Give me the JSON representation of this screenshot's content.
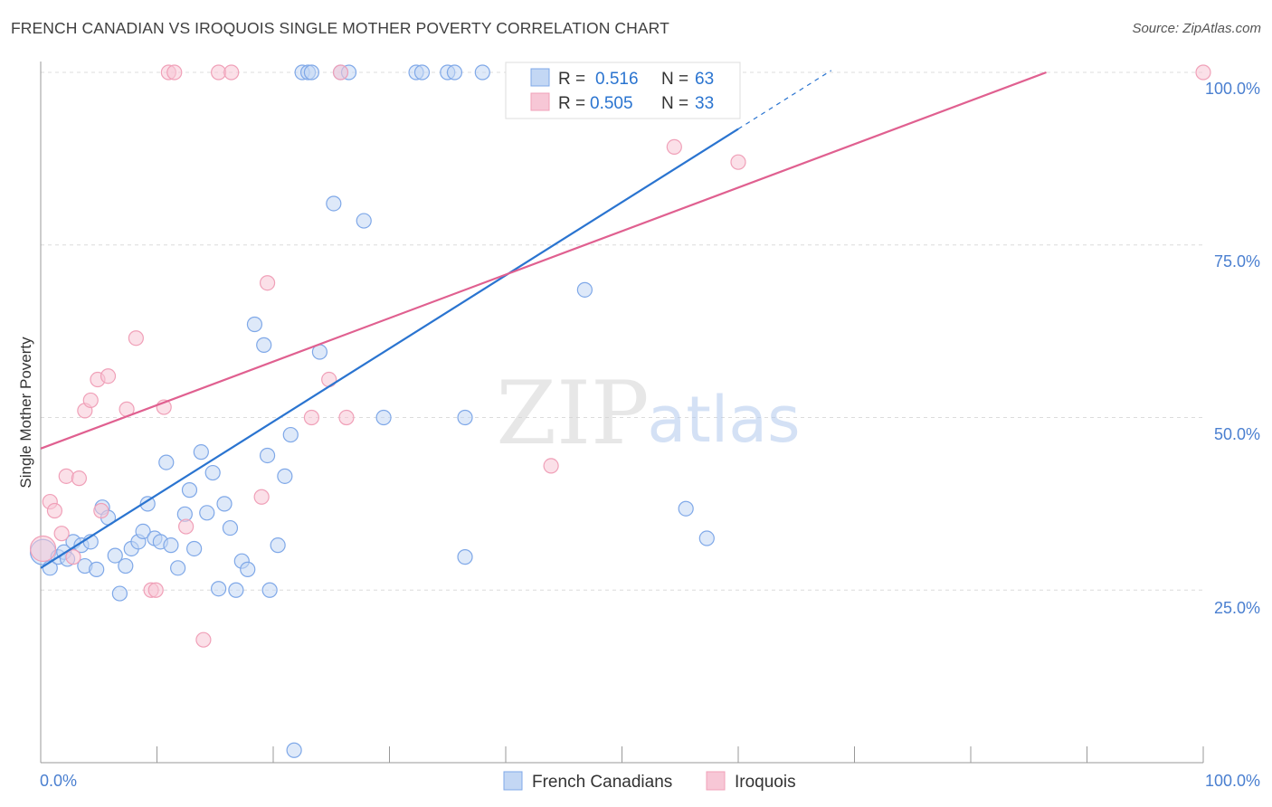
{
  "chart_data": {
    "type": "scatter",
    "title": "FRENCH CANADIAN VS IROQUOIS SINGLE MOTHER POVERTY CORRELATION CHART",
    "source": "Source: ZipAtlas.com",
    "xlabel": "",
    "ylabel": "Single Mother Poverty",
    "xlim": [
      0,
      100
    ],
    "ylim": [
      0,
      100
    ],
    "x_tick_labels": [
      "0.0%",
      "100.0%"
    ],
    "y_tick_labels": [
      {
        "value": 100,
        "label": "100.0%"
      },
      {
        "value": 75,
        "label": "75.0%"
      },
      {
        "value": 50,
        "label": "50.0%"
      },
      {
        "value": 25,
        "label": "25.0%"
      }
    ],
    "watermark": {
      "zip": "ZIP",
      "atlas": "atlas"
    },
    "stats_legend": [
      {
        "series": "French Canadians",
        "r_label": "R =",
        "r_value": "0.516",
        "n_label": "N =",
        "n_value": "63"
      },
      {
        "series": "Iroquois",
        "r_label": "R =",
        "r_value": "0.505",
        "n_label": "N =",
        "n_value": "33"
      }
    ],
    "series": [
      {
        "name": "French Canadians",
        "color": "#7fa8e8",
        "fill": "#c3d7f4",
        "line_color": "#2a74d0",
        "trend": {
          "x0": 0,
          "y0": 28.2,
          "x1": 60,
          "y1": 91.8,
          "dash_to_x": 68
        },
        "points": [
          [
            0.2,
            30.5
          ],
          [
            0.8,
            28.2
          ],
          [
            1.5,
            29.8
          ],
          [
            2,
            30.5
          ],
          [
            2.3,
            29.5
          ],
          [
            2.8,
            32
          ],
          [
            3.5,
            31.5
          ],
          [
            3.8,
            28.5
          ],
          [
            4.3,
            32
          ],
          [
            4.8,
            28
          ],
          [
            5.3,
            37
          ],
          [
            5.8,
            35.5
          ],
          [
            6.4,
            30
          ],
          [
            6.8,
            24.5
          ],
          [
            7.3,
            28.5
          ],
          [
            7.8,
            31
          ],
          [
            8.4,
            32
          ],
          [
            8.8,
            33.5
          ],
          [
            9.2,
            37.5
          ],
          [
            9.8,
            32.5
          ],
          [
            10.3,
            32
          ],
          [
            10.8,
            43.5
          ],
          [
            11.2,
            31.5
          ],
          [
            11.8,
            28.2
          ],
          [
            12.4,
            36
          ],
          [
            12.8,
            39.5
          ],
          [
            13.2,
            31
          ],
          [
            13.8,
            45
          ],
          [
            14.3,
            36.2
          ],
          [
            14.8,
            42
          ],
          [
            15.3,
            25.2
          ],
          [
            15.8,
            37.5
          ],
          [
            16.3,
            34
          ],
          [
            16.8,
            25
          ],
          [
            17.3,
            29.2
          ],
          [
            17.8,
            28
          ],
          [
            18.4,
            63.5
          ],
          [
            19.2,
            60.5
          ],
          [
            19.5,
            44.5
          ],
          [
            19.7,
            25
          ],
          [
            20.4,
            31.5
          ],
          [
            21,
            41.5
          ],
          [
            21.5,
            47.5
          ],
          [
            21.8,
            1.8
          ],
          [
            22.5,
            100
          ],
          [
            23,
            100
          ],
          [
            23.3,
            100
          ],
          [
            24,
            59.5
          ],
          [
            25.2,
            81
          ],
          [
            25.8,
            100
          ],
          [
            26.5,
            100
          ],
          [
            27.8,
            78.5
          ],
          [
            29.5,
            50
          ],
          [
            32.3,
            100
          ],
          [
            32.8,
            100
          ],
          [
            35,
            100
          ],
          [
            35.6,
            100
          ],
          [
            36.5,
            50
          ],
          [
            36.5,
            29.8
          ],
          [
            38,
            100
          ],
          [
            46.8,
            68.5
          ],
          [
            55.5,
            36.8
          ],
          [
            57.3,
            32.5
          ]
        ]
      },
      {
        "name": "Iroquois",
        "color": "#f0a0b8",
        "fill": "#f7c7d6",
        "line_color": "#e06090",
        "trend": {
          "x0": 0,
          "y0": 45.5,
          "x1": 86.5,
          "y1": 100
        },
        "points": [
          [
            0.2,
            31
          ],
          [
            0.8,
            37.8
          ],
          [
            1.2,
            36.5
          ],
          [
            1.8,
            33.2
          ],
          [
            2.2,
            41.5
          ],
          [
            2.8,
            29.8
          ],
          [
            3.3,
            41.2
          ],
          [
            3.8,
            51
          ],
          [
            4.3,
            52.5
          ],
          [
            4.9,
            55.5
          ],
          [
            5.2,
            36.5
          ],
          [
            5.8,
            56
          ],
          [
            7.4,
            51.2
          ],
          [
            8.2,
            61.5
          ],
          [
            9.5,
            25
          ],
          [
            9.9,
            25
          ],
          [
            10.6,
            51.5
          ],
          [
            11,
            100
          ],
          [
            11.5,
            100
          ],
          [
            12.5,
            34.2
          ],
          [
            14,
            17.8
          ],
          [
            15.3,
            100
          ],
          [
            16.4,
            100
          ],
          [
            19,
            38.5
          ],
          [
            19.5,
            69.5
          ],
          [
            23.3,
            50
          ],
          [
            24.8,
            55.5
          ],
          [
            25.8,
            100
          ],
          [
            26.3,
            50
          ],
          [
            43.9,
            43
          ],
          [
            54.5,
            89.2
          ],
          [
            60,
            87
          ],
          [
            100,
            100
          ]
        ]
      }
    ]
  }
}
